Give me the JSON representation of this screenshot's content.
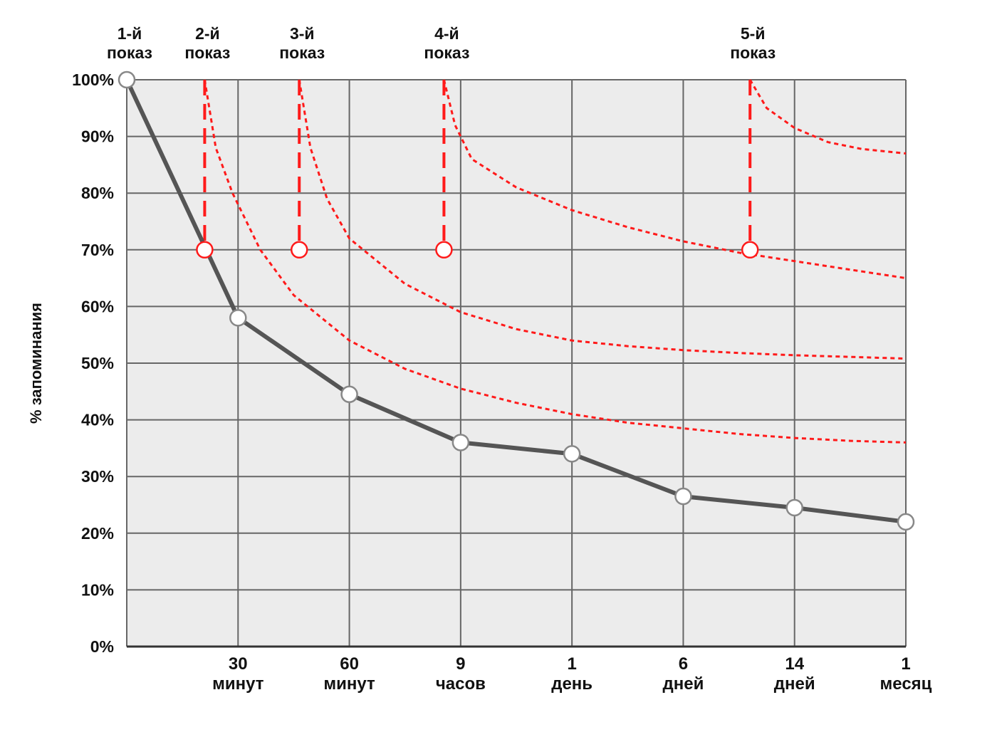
{
  "chart_data": {
    "type": "line",
    "ylabel": "% запоминания",
    "ylim": [
      0,
      100
    ],
    "yticks": [
      "0%",
      "10%",
      "20%",
      "30%",
      "40%",
      "50%",
      "60%",
      "70%",
      "80%",
      "90%",
      "100%"
    ],
    "xticks": [
      {
        "x": 1,
        "line1": "30",
        "line2": "минут"
      },
      {
        "x": 2,
        "line1": "60",
        "line2": "минут"
      },
      {
        "x": 3,
        "line1": "9",
        "line2": "часов"
      },
      {
        "x": 4,
        "line1": "1",
        "line2": "день"
      },
      {
        "x": 5,
        "line1": "6",
        "line2": "дней"
      },
      {
        "x": 6,
        "line1": "14",
        "line2": "дней"
      },
      {
        "x": 7,
        "line1": "1",
        "line2": "месяц"
      }
    ],
    "xlim": [
      0,
      7
    ],
    "grid": true,
    "colors": {
      "forgetting_curve": "#555555",
      "review_curve": "#ff1a1a",
      "grid": "#666666",
      "plot_bg": "#ececec"
    },
    "series": [
      {
        "style": "solid",
        "points": [
          [
            0,
            100
          ],
          [
            1,
            58
          ],
          [
            2,
            44.5
          ],
          [
            3,
            36
          ],
          [
            4,
            34
          ],
          [
            5,
            26.5
          ],
          [
            6,
            24.5
          ],
          [
            7,
            22
          ]
        ]
      },
      {
        "style": "dotted",
        "points": [
          [
            0.7,
            100
          ],
          [
            0.8,
            88
          ],
          [
            0.95,
            80
          ],
          [
            1.2,
            70
          ],
          [
            1.5,
            62
          ],
          [
            2,
            54
          ],
          [
            2.5,
            49
          ],
          [
            3,
            45.5
          ],
          [
            3.5,
            43
          ],
          [
            4,
            41
          ],
          [
            4.5,
            39.5
          ],
          [
            5,
            38.5
          ],
          [
            5.5,
            37.5
          ],
          [
            6,
            36.8
          ],
          [
            6.5,
            36.3
          ],
          [
            7,
            36
          ]
        ]
      },
      {
        "style": "dotted",
        "points": [
          [
            1.55,
            100
          ],
          [
            1.65,
            88
          ],
          [
            1.8,
            79
          ],
          [
            2,
            72
          ],
          [
            2.5,
            64
          ],
          [
            3,
            59
          ],
          [
            3.5,
            56
          ],
          [
            4,
            54
          ],
          [
            4.5,
            53
          ],
          [
            5,
            52.3
          ],
          [
            5.5,
            51.8
          ],
          [
            6,
            51.4
          ],
          [
            6.5,
            51.1
          ],
          [
            7,
            50.8
          ]
        ]
      },
      {
        "style": "dotted",
        "points": [
          [
            2.85,
            100
          ],
          [
            2.95,
            92
          ],
          [
            3.1,
            86
          ],
          [
            3.5,
            81
          ],
          [
            4,
            77
          ],
          [
            4.5,
            74
          ],
          [
            5,
            71.5
          ],
          [
            5.5,
            69.5
          ],
          [
            6,
            68
          ],
          [
            6.5,
            66.5
          ],
          [
            7,
            65
          ]
        ]
      },
      {
        "style": "dotted",
        "points": [
          [
            5.6,
            100
          ],
          [
            5.75,
            95
          ],
          [
            6,
            91.5
          ],
          [
            6.3,
            89
          ],
          [
            6.6,
            87.8
          ],
          [
            7,
            87
          ]
        ]
      }
    ],
    "repetitions": [
      {
        "line1": "1-й",
        "line2": "показ",
        "x": 0,
        "y": 100,
        "drop": false
      },
      {
        "line1": "2-й",
        "line2": "показ",
        "x": 0.7,
        "y": 70,
        "drop": true
      },
      {
        "line1": "3-й",
        "line2": "показ",
        "x": 1.55,
        "y": 70,
        "drop": true
      },
      {
        "line1": "4-й",
        "line2": "показ",
        "x": 2.85,
        "y": 70,
        "drop": true
      },
      {
        "line1": "5-й",
        "line2": "показ",
        "x": 5.6,
        "y": 70,
        "drop": true
      }
    ]
  }
}
